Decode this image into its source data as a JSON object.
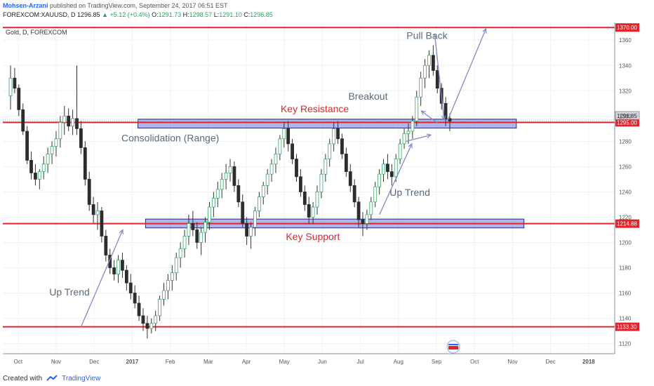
{
  "header": {
    "author": "Mohsen-Arzani",
    "published": "published on TradingView.com, September 24, 2017 06:51 EST",
    "symbol": "FOREXCOM:XAUUSD, D",
    "last": "1296.85",
    "change": "▲ +5.12 (+0.4%)",
    "o_label": "O:",
    "o_value": "1291.73",
    "h_label": "H:",
    "h_value": "1298.57",
    "l_label": "L:",
    "l_value": "1291.10",
    "c_label": "C:",
    "c_value": "1296.85"
  },
  "footer": {
    "created_with": "Created with",
    "brand": "TradingView"
  },
  "chart_data": {
    "type": "candlestick",
    "legend": "Gold, D, FOREXCOM",
    "ylim": [
      1112,
      1374
    ],
    "y_ticks": [
      1120,
      1140,
      1160,
      1180,
      1200,
      1220,
      1240,
      1260,
      1280,
      1300,
      1320,
      1340,
      1360
    ],
    "x_range": [
      0,
      12.6
    ],
    "x_ticks": [
      {
        "label": "Oct",
        "m": 0.2
      },
      {
        "label": "Nov",
        "m": 1.2
      },
      {
        "label": "Dec",
        "m": 2.2
      },
      {
        "label": "2017",
        "m": 3.2,
        "bold": true
      },
      {
        "label": "Feb",
        "m": 4.2
      },
      {
        "label": "Mar",
        "m": 5.2
      },
      {
        "label": "Apr",
        "m": 6.2
      },
      {
        "label": "May",
        "m": 7.2
      },
      {
        "label": "Jun",
        "m": 8.2
      },
      {
        "label": "Jul",
        "m": 9.2
      },
      {
        "label": "Aug",
        "m": 10.2
      },
      {
        "label": "Sep",
        "m": 11.2
      },
      {
        "label": "Oct",
        "m": 12.2
      },
      {
        "label": "Nov",
        "m": 13.2
      },
      {
        "label": "Dec",
        "m": 14.2
      },
      {
        "label": "2018",
        "m": 15.2,
        "bold": true
      }
    ],
    "x_ticks_note": "month positions in month-index units (0 = start of Oct 2016)",
    "horizontal_lines": [
      {
        "price": 1370.0,
        "label": "1370.00",
        "color": "#e0242b"
      },
      {
        "price": 1295.0,
        "label": "1295.00",
        "color": "#e0242b"
      },
      {
        "price": 1214.88,
        "label": "1214.88",
        "color": "#e0242b"
      },
      {
        "price": 1133.3,
        "label": "1133.30",
        "color": "#e0242b"
      }
    ],
    "current_price": {
      "price": 1296.85,
      "label": "1296.85"
    },
    "zones": [
      {
        "name": "resistance-zone",
        "m0": 3.35,
        "m1": 13.3,
        "top": 1297.5,
        "bottom": 1290.5
      },
      {
        "name": "support-zone",
        "m0": 3.55,
        "m1": 13.5,
        "top": 1218.5,
        "bottom": 1211.5
      }
    ],
    "annotations": [
      {
        "text": "Key Resistance",
        "m": 8.0,
        "price": 1303,
        "color": "#e0242b"
      },
      {
        "text": "Key Support",
        "m": 7.95,
        "price": 1202,
        "color": "#e0242b"
      },
      {
        "text": "Consolidation (Range)",
        "m": 4.2,
        "price": 1280,
        "color": "#5a6b7b"
      },
      {
        "text": "Up Trend",
        "m": 1.55,
        "price": 1158,
        "color": "#5a6b7b"
      },
      {
        "text": "Up Trend",
        "m": 10.5,
        "price": 1237,
        "color": "#5a6b7b"
      },
      {
        "text": "Breakout",
        "m": 9.4,
        "price": 1313,
        "color": "#5a6b7b"
      },
      {
        "text": "Pull Back",
        "m": 10.95,
        "price": 1361,
        "color": "#5a6b7b"
      }
    ],
    "arrows": [
      {
        "from": [
          1.85,
          1133
        ],
        "to": [
          2.95,
          1210
        ]
      },
      {
        "from": [
          9.7,
          1222
        ],
        "to": [
          10.55,
          1278
        ]
      },
      {
        "from": [
          10.4,
          1280
        ],
        "to": [
          11.05,
          1285
        ]
      },
      {
        "from": [
          11.25,
          1294
        ],
        "to": [
          10.8,
          1304
        ]
      },
      {
        "from": [
          11.15,
          1365
        ],
        "to": [
          11.4,
          1297
        ]
      },
      {
        "from": [
          11.5,
          1297
        ],
        "to": [
          12.5,
          1369
        ]
      }
    ],
    "candles": [
      [
        1316,
        1340,
        1305,
        1330
      ],
      [
        1330,
        1338,
        1318,
        1322
      ],
      [
        1322,
        1325,
        1300,
        1305
      ],
      [
        1305,
        1310,
        1285,
        1288
      ],
      [
        1288,
        1292,
        1262,
        1265
      ],
      [
        1265,
        1272,
        1250,
        1255
      ],
      [
        1255,
        1262,
        1245,
        1250
      ],
      [
        1250,
        1258,
        1242,
        1256
      ],
      [
        1256,
        1268,
        1250,
        1262
      ],
      [
        1262,
        1275,
        1255,
        1270
      ],
      [
        1270,
        1280,
        1262,
        1276
      ],
      [
        1276,
        1288,
        1268,
        1282
      ],
      [
        1282,
        1300,
        1275,
        1295
      ],
      [
        1295,
        1308,
        1285,
        1300
      ],
      [
        1300,
        1306,
        1288,
        1292
      ],
      [
        1292,
        1305,
        1285,
        1298
      ],
      [
        1298,
        1340,
        1285,
        1290
      ],
      [
        1290,
        1296,
        1270,
        1275
      ],
      [
        1275,
        1280,
        1245,
        1250
      ],
      [
        1250,
        1256,
        1225,
        1230
      ],
      [
        1230,
        1236,
        1215,
        1222
      ],
      [
        1222,
        1232,
        1210,
        1225
      ],
      [
        1225,
        1228,
        1200,
        1205
      ],
      [
        1205,
        1210,
        1185,
        1190
      ],
      [
        1190,
        1195,
        1175,
        1180
      ],
      [
        1180,
        1186,
        1170,
        1175
      ],
      [
        1175,
        1190,
        1168,
        1186
      ],
      [
        1186,
        1192,
        1172,
        1178
      ],
      [
        1178,
        1182,
        1162,
        1168
      ],
      [
        1168,
        1175,
        1155,
        1160
      ],
      [
        1160,
        1166,
        1148,
        1152
      ],
      [
        1152,
        1158,
        1138,
        1142
      ],
      [
        1142,
        1148,
        1130,
        1136
      ],
      [
        1136,
        1142,
        1124,
        1132
      ],
      [
        1132,
        1140,
        1128,
        1136
      ],
      [
        1136,
        1146,
        1130,
        1142
      ],
      [
        1142,
        1158,
        1138,
        1155
      ],
      [
        1155,
        1168,
        1150,
        1162
      ],
      [
        1162,
        1175,
        1155,
        1170
      ],
      [
        1170,
        1182,
        1162,
        1176
      ],
      [
        1176,
        1192,
        1170,
        1188
      ],
      [
        1188,
        1200,
        1180,
        1195
      ],
      [
        1195,
        1210,
        1188,
        1205
      ],
      [
        1205,
        1222,
        1198,
        1215
      ],
      [
        1215,
        1225,
        1205,
        1210
      ],
      [
        1210,
        1216,
        1195,
        1200
      ],
      [
        1200,
        1212,
        1190,
        1208
      ],
      [
        1208,
        1220,
        1200,
        1216
      ],
      [
        1216,
        1232,
        1210,
        1228
      ],
      [
        1228,
        1240,
        1220,
        1235
      ],
      [
        1235,
        1248,
        1228,
        1242
      ],
      [
        1242,
        1255,
        1235,
        1250
      ],
      [
        1250,
        1262,
        1242,
        1255
      ],
      [
        1255,
        1266,
        1248,
        1260
      ],
      [
        1260,
        1264,
        1240,
        1245
      ],
      [
        1245,
        1250,
        1228,
        1232
      ],
      [
        1232,
        1238,
        1212,
        1215
      ],
      [
        1215,
        1220,
        1198,
        1205
      ],
      [
        1205,
        1216,
        1195,
        1212
      ],
      [
        1212,
        1228,
        1205,
        1225
      ],
      [
        1225,
        1240,
        1220,
        1236
      ],
      [
        1236,
        1248,
        1230,
        1245
      ],
      [
        1245,
        1258,
        1238,
        1254
      ],
      [
        1254,
        1266,
        1248,
        1262
      ],
      [
        1262,
        1275,
        1255,
        1270
      ],
      [
        1270,
        1285,
        1265,
        1282
      ],
      [
        1282,
        1295,
        1275,
        1290
      ],
      [
        1290,
        1296,
        1272,
        1278
      ],
      [
        1278,
        1282,
        1262,
        1266
      ],
      [
        1266,
        1270,
        1248,
        1252
      ],
      [
        1252,
        1258,
        1236,
        1240
      ],
      [
        1240,
        1245,
        1225,
        1230
      ],
      [
        1230,
        1236,
        1215,
        1220
      ],
      [
        1220,
        1232,
        1215,
        1228
      ],
      [
        1228,
        1245,
        1222,
        1240
      ],
      [
        1240,
        1258,
        1235,
        1254
      ],
      [
        1254,
        1270,
        1248,
        1266
      ],
      [
        1266,
        1282,
        1260,
        1278
      ],
      [
        1278,
        1295,
        1272,
        1290
      ],
      [
        1290,
        1296,
        1278,
        1282
      ],
      [
        1282,
        1286,
        1266,
        1270
      ],
      [
        1270,
        1275,
        1252,
        1256
      ],
      [
        1256,
        1262,
        1240,
        1245
      ],
      [
        1245,
        1250,
        1228,
        1232
      ],
      [
        1232,
        1236,
        1212,
        1218
      ],
      [
        1218,
        1224,
        1205,
        1215
      ],
      [
        1215,
        1226,
        1210,
        1222
      ],
      [
        1222,
        1236,
        1218,
        1232
      ],
      [
        1232,
        1248,
        1228,
        1244
      ],
      [
        1244,
        1258,
        1238,
        1254
      ],
      [
        1254,
        1266,
        1248,
        1262
      ],
      [
        1262,
        1270,
        1250,
        1256
      ],
      [
        1256,
        1262,
        1245,
        1252
      ],
      [
        1252,
        1270,
        1248,
        1266
      ],
      [
        1266,
        1282,
        1262,
        1278
      ],
      [
        1278,
        1290,
        1274,
        1286
      ],
      [
        1286,
        1294,
        1278,
        1288
      ],
      [
        1288,
        1300,
        1282,
        1296
      ],
      [
        1296,
        1320,
        1292,
        1315
      ],
      [
        1315,
        1335,
        1308,
        1330
      ],
      [
        1330,
        1345,
        1322,
        1340
      ],
      [
        1340,
        1352,
        1330,
        1348
      ],
      [
        1348,
        1356,
        1332,
        1336
      ],
      [
        1336,
        1340,
        1318,
        1322
      ],
      [
        1322,
        1326,
        1305,
        1310
      ],
      [
        1310,
        1315,
        1292,
        1298
      ],
      [
        1298,
        1302,
        1288,
        1296
      ]
    ]
  }
}
